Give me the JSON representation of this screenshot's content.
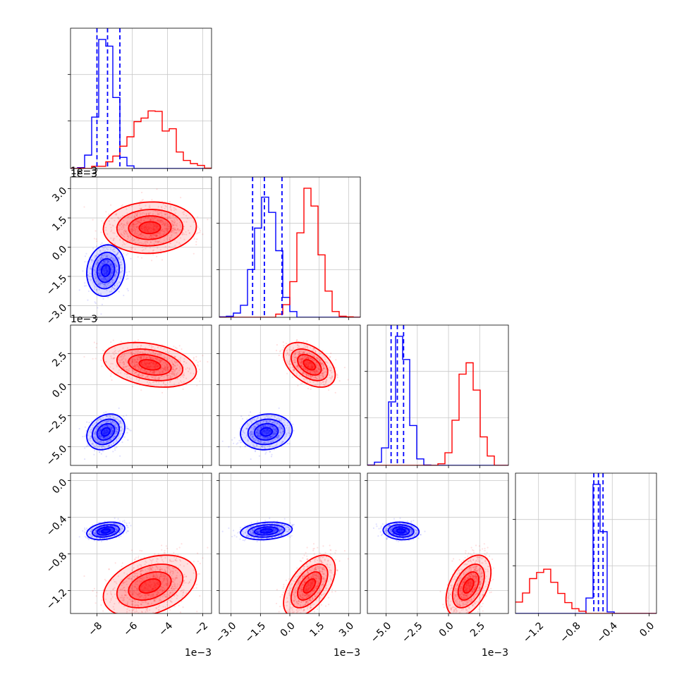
{
  "chart_data": {
    "type": "scatter",
    "layout": "corner",
    "series": [
      {
        "color": "#0000ff",
        "mean": [
          -7.5,
          -1.2,
          -3.8,
          -0.55
        ],
        "sd": [
          0.45,
          0.55,
          0.6,
          0.04
        ],
        "corr": {
          "0-1": 0.1,
          "0-2": 0.25,
          "0-3": 0.3,
          "1-2": 0.1,
          "1-3": 0.2,
          "2-3": -0.1
        }
      },
      {
        "color": "#ff0000",
        "mean": [
          -5.0,
          1.0,
          1.6,
          -1.15
        ],
        "sd": [
          1.1,
          0.55,
          0.75,
          0.14
        ],
        "corr": {
          "0-1": 0.05,
          "0-2": -0.3,
          "0-3": 0.35,
          "1-2": -0.45,
          "1-3": 0.55,
          "2-3": 0.45
        }
      }
    ],
    "truth_lines": [
      [
        -8.0,
        -7.4,
        -6.7
      ],
      [
        -1.9,
        -1.3,
        -0.4
      ],
      [
        -4.6,
        -4.1,
        -3.6
      ],
      [
        -0.6,
        -0.55,
        -0.5
      ]
    ],
    "axes": [
      {
        "range": [
          -9.5,
          -1.5
        ],
        "ticks": [
          -8,
          -6,
          -4,
          -2
        ],
        "tick_labels": [
          "−8",
          "−6",
          "−4",
          "−2"
        ],
        "scale_label": "1e−3"
      },
      {
        "range": [
          -3.6,
          3.6
        ],
        "ticks": [
          -3.0,
          -1.5,
          0.0,
          1.5,
          3.0
        ],
        "tick_labels": [
          "−3.0",
          "−1.5",
          "0.0",
          "1.5",
          "3.0"
        ],
        "scale_label": "1e−3"
      },
      {
        "range": [
          -6.5,
          4.8
        ],
        "ticks": [
          -5.0,
          -2.5,
          0.0,
          2.5
        ],
        "tick_labels": [
          "−5.0",
          "−2.5",
          "0.0",
          "2.5"
        ],
        "scale_label": "1e−3"
      },
      {
        "range": [
          -1.45,
          0.08
        ],
        "ticks": [
          -1.2,
          -0.8,
          -0.4,
          0.0
        ],
        "tick_labels": [
          "−1.2",
          "−0.8",
          "−0.4",
          "0.0"
        ],
        "scale_label": ""
      }
    ],
    "grid": true
  }
}
